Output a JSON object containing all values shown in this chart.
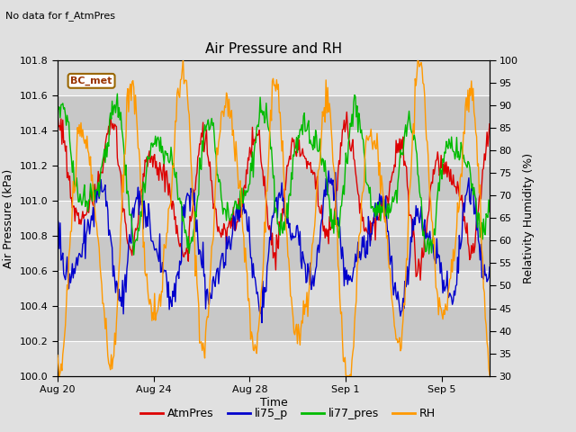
{
  "title": "Air Pressure and RH",
  "subtitle": "No data for f_AtmPres",
  "xlabel": "Time",
  "ylabel_left": "Air Pressure (kPa)",
  "ylabel_right": "Relativity Humidity (%)",
  "ylim_left": [
    100.0,
    101.8
  ],
  "ylim_right": [
    30,
    100
  ],
  "yticks_left": [
    100.0,
    100.2,
    100.4,
    100.6,
    100.8,
    101.0,
    101.2,
    101.4,
    101.6,
    101.8
  ],
  "yticks_right": [
    30,
    35,
    40,
    45,
    50,
    55,
    60,
    65,
    70,
    75,
    80,
    85,
    90,
    95,
    100
  ],
  "fig_bg_color": "#e0e0e0",
  "plot_bg_color": "#d0d0d0",
  "band_color_light": "#dcdcdc",
  "band_color_dark": "#c8c8c8",
  "grid_color": "#ffffff",
  "legend_labels": [
    "AtmPres",
    "li75_p",
    "li77_pres",
    "RH"
  ],
  "legend_colors": [
    "#dd0000",
    "#0000cc",
    "#00bb00",
    "#ff9900"
  ],
  "box_label": "BC_met",
  "box_facecolor": "#ffffff",
  "box_edgecolor": "#996600",
  "box_textcolor": "#993300",
  "n_points": 500,
  "seed": 7
}
